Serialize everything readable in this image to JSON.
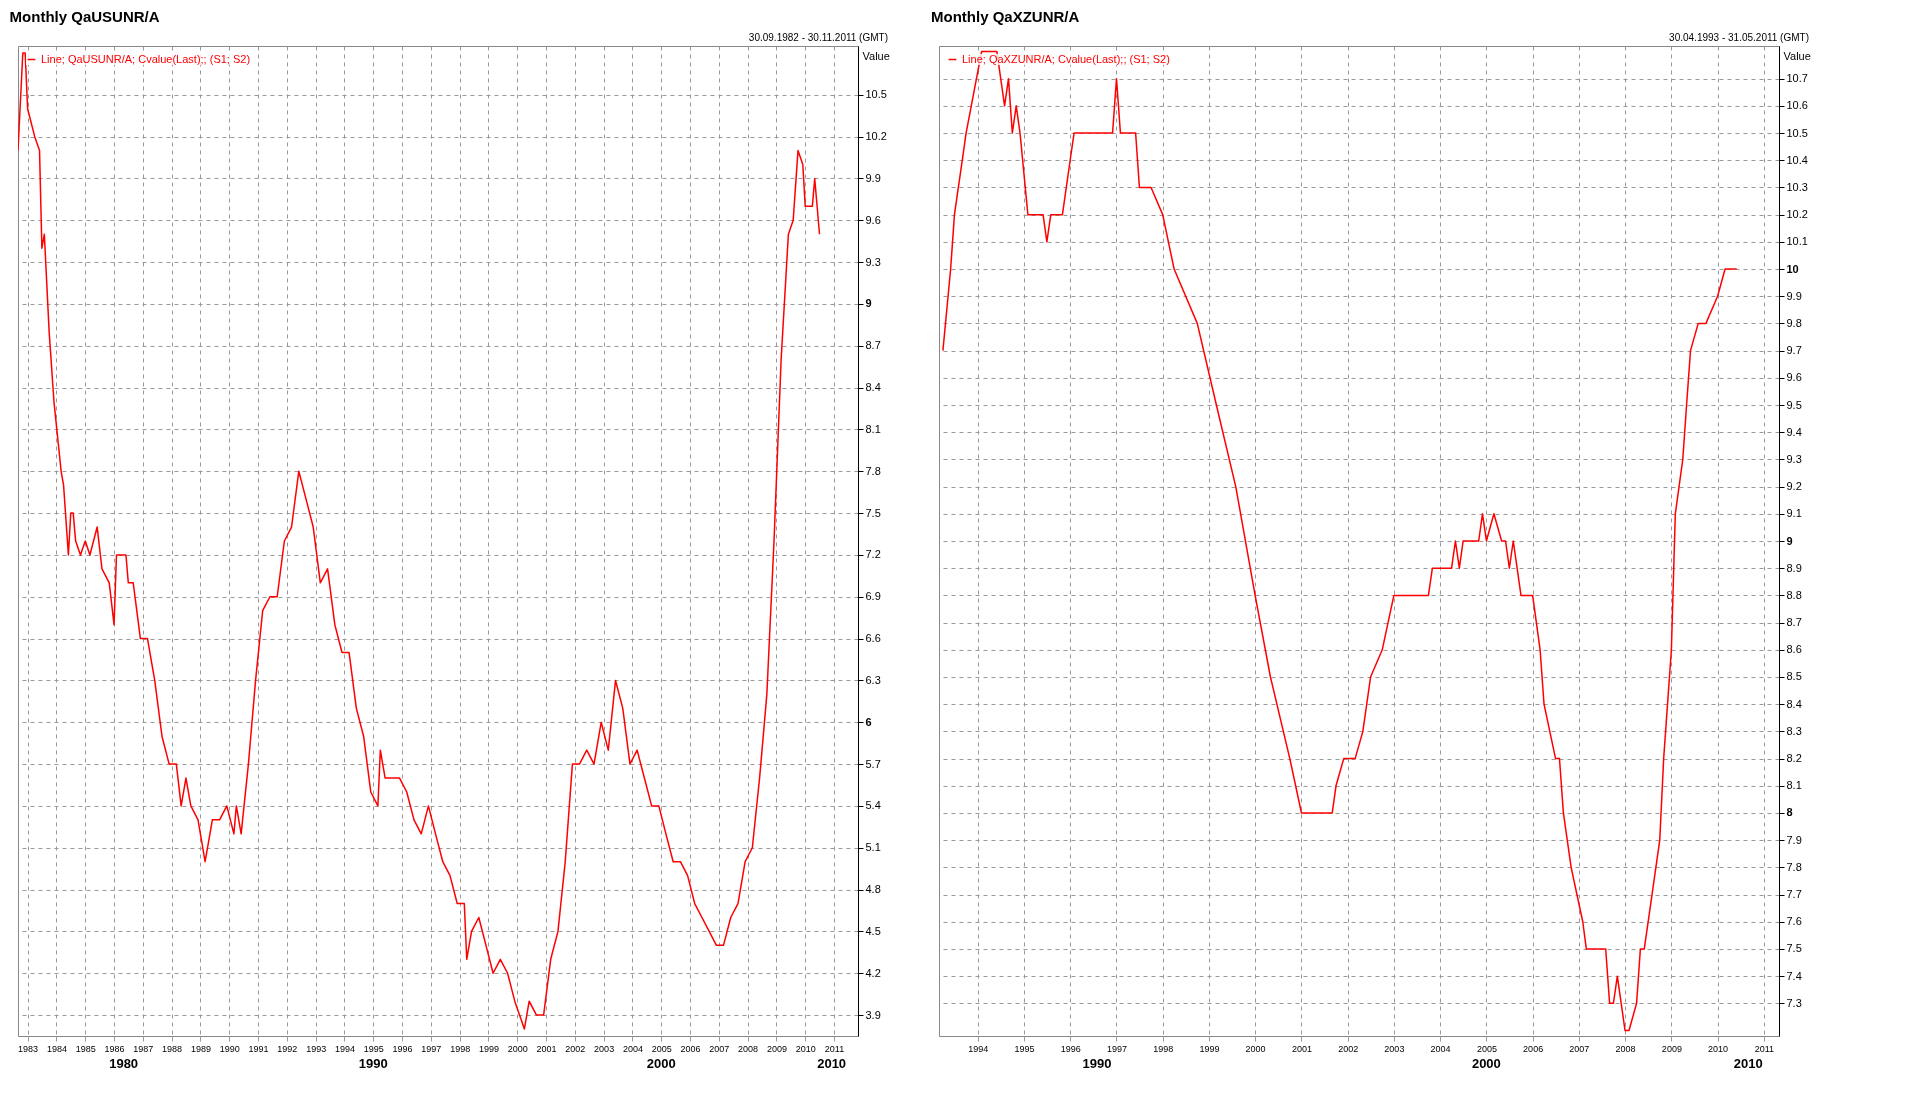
{
  "chart_data": [
    {
      "type": "line",
      "title": "Monthly QaUSUNR/A",
      "subtitle": "30.09.1982 - 30.11.2011 (GMT)",
      "ylabel": "Value",
      "legend": "top left",
      "grid": true,
      "marker": "none",
      "xlim": [
        "1982-09",
        "2011-11"
      ],
      "xticks": [
        "1983",
        "1984",
        "1985",
        "1986",
        "1987",
        "1988",
        "1989",
        "1990",
        "1991",
        "1992",
        "1993",
        "1994",
        "1995",
        "1996",
        "1997",
        "1998",
        "1999",
        "2000",
        "2001",
        "2002",
        "2003",
        "2004",
        "2005",
        "2006",
        "2007",
        "2008",
        "2009",
        "2010",
        "2011"
      ],
      "ylim": [
        3.75,
        10.85
      ],
      "yticks": [
        3.9,
        4.2,
        4.5,
        4.8,
        5.1,
        5.4,
        5.7,
        6,
        6.3,
        6.6,
        6.9,
        7.2,
        7.5,
        7.8,
        8.1,
        8.4,
        8.7,
        9,
        9.3,
        9.6,
        9.9,
        10.2,
        10.5
      ],
      "annotations": [
        "1980",
        "1990",
        "2000",
        "2010"
      ],
      "series": [
        {
          "name": "Line; QaUSUNR/A; Cvalue(Last);; (S1; S2)",
          "color": "#ff0000",
          "x": [
            "1982-09",
            "1982-11",
            "1982-12",
            "1983-01",
            "1983-04",
            "1983-06",
            "1983-07",
            "1983-08",
            "1983-10",
            "1983-12",
            "1984-03",
            "1984-04",
            "1984-06",
            "1984-07",
            "1984-08",
            "1984-09",
            "1984-11",
            "1985-01",
            "1985-03",
            "1985-06",
            "1985-08",
            "1985-11",
            "1986-01",
            "1986-02",
            "1986-06",
            "1986-07",
            "1986-09",
            "1986-12",
            "1987-03",
            "1987-06",
            "1987-09",
            "1987-12",
            "1988-03",
            "1988-05",
            "1988-07",
            "1988-09",
            "1988-12",
            "1989-03",
            "1989-06",
            "1989-09",
            "1989-12",
            "1990-03",
            "1990-04",
            "1990-06",
            "1990-09",
            "1990-12",
            "1991-03",
            "1991-06",
            "1991-09",
            "1991-12",
            "1992-03",
            "1992-06",
            "1992-09",
            "1992-12",
            "1993-03",
            "1993-06",
            "1993-09",
            "1993-12",
            "1994-03",
            "1994-06",
            "1994-09",
            "1994-12",
            "1995-03",
            "1995-04",
            "1995-06",
            "1995-09",
            "1995-12",
            "1996-03",
            "1996-06",
            "1996-09",
            "1996-12",
            "1997-03",
            "1997-06",
            "1997-09",
            "1997-12",
            "1998-03",
            "1998-04",
            "1998-06",
            "1998-09",
            "1998-12",
            "1999-03",
            "1999-06",
            "1999-09",
            "1999-12",
            "2000-04",
            "2000-06",
            "2000-09",
            "2000-12",
            "2001-03",
            "2001-06",
            "2001-09",
            "2001-12",
            "2002-03",
            "2002-06",
            "2002-09",
            "2002-12",
            "2003-03",
            "2003-06",
            "2003-09",
            "2003-12",
            "2004-03",
            "2004-06",
            "2004-09",
            "2004-12",
            "2005-03",
            "2005-06",
            "2005-09",
            "2005-12",
            "2006-03",
            "2006-06",
            "2006-09",
            "2006-12",
            "2007-03",
            "2007-06",
            "2007-09",
            "2007-12",
            "2008-03",
            "2008-06",
            "2008-09",
            "2008-12",
            "2009-03",
            "2009-06",
            "2009-08",
            "2009-10",
            "2009-12",
            "2010-01",
            "2010-04",
            "2010-05",
            "2010-07"
          ],
          "values": [
            10.1,
            10.8,
            10.8,
            10.4,
            10.2,
            10.1,
            9.4,
            9.5,
            8.8,
            8.3,
            7.8,
            7.7,
            7.2,
            7.5,
            7.5,
            7.3,
            7.2,
            7.3,
            7.2,
            7.4,
            7.1,
            7.0,
            6.7,
            7.2,
            7.2,
            7.0,
            7.0,
            6.6,
            6.6,
            6.3,
            5.9,
            5.7,
            5.7,
            5.4,
            5.6,
            5.4,
            5.3,
            5.0,
            5.3,
            5.3,
            5.4,
            5.2,
            5.4,
            5.2,
            5.7,
            6.3,
            6.8,
            6.9,
            6.9,
            7.3,
            7.4,
            7.8,
            7.6,
            7.4,
            7.0,
            7.1,
            6.7,
            6.5,
            6.5,
            6.1,
            5.9,
            5.5,
            5.4,
            5.8,
            5.6,
            5.6,
            5.6,
            5.5,
            5.3,
            5.2,
            5.4,
            5.2,
            5.0,
            4.9,
            4.7,
            4.7,
            4.3,
            4.5,
            4.6,
            4.4,
            4.2,
            4.3,
            4.2,
            4.0,
            3.8,
            4.0,
            3.9,
            3.9,
            4.3,
            4.5,
            5.0,
            5.7,
            5.7,
            5.8,
            5.7,
            6.0,
            5.8,
            6.3,
            6.1,
            5.7,
            5.8,
            5.6,
            5.4,
            5.4,
            5.2,
            5.0,
            5.0,
            4.9,
            4.7,
            4.6,
            4.5,
            4.4,
            4.4,
            4.6,
            4.7,
            5.0,
            5.1,
            5.6,
            6.2,
            7.3,
            8.6,
            9.5,
            9.6,
            10.1,
            10.0,
            9.7,
            9.7,
            9.9,
            9.5
          ]
        }
      ]
    },
    {
      "type": "line",
      "title": "Monthly QaXZUNR/A",
      "subtitle": "30.04.1993 - 31.05.2011 (GMT)",
      "ylabel": "Value",
      "legend": "top left",
      "grid": true,
      "marker": "none",
      "xlim": [
        "1993-03",
        "2011-05"
      ],
      "xticks": [
        "1994",
        "1995",
        "1996",
        "1997",
        "1998",
        "1999",
        "2000",
        "2001",
        "2002",
        "2003",
        "2004",
        "2005",
        "2006",
        "2007",
        "2008",
        "2009",
        "2010",
        "2011"
      ],
      "ylim": [
        7.18,
        10.82
      ],
      "yticks": [
        7.3,
        7.4,
        7.5,
        7.6,
        7.7,
        7.8,
        7.9,
        8,
        8.1,
        8.2,
        8.3,
        8.4,
        8.5,
        8.6,
        8.7,
        8.8,
        8.9,
        9,
        9.1,
        9.2,
        9.3,
        9.4,
        9.5,
        9.6,
        9.7,
        9.8,
        9.9,
        10,
        10.1,
        10.2,
        10.3,
        10.4,
        10.5,
        10.6,
        10.7
      ],
      "annotations": [
        "1990",
        "2000",
        "2010"
      ],
      "series": [
        {
          "name": "Line; QaXZUNR/A; Cvalue(Last);; (S1; S2)",
          "color": "#ff0000",
          "x": [
            "1993-04",
            "1993-06",
            "1993-07",
            "1993-09",
            "1993-10",
            "1994-02",
            "1994-06",
            "1994-08",
            "1994-09",
            "1994-10",
            "1994-11",
            "1994-12",
            "1995-02",
            "1995-06",
            "1995-07",
            "1995-08",
            "1995-11",
            "1996-01",
            "1996-02",
            "1996-12",
            "1997-01",
            "1997-02",
            "1997-06",
            "1997-07",
            "1997-10",
            "1998-01",
            "1998-04",
            "1998-10",
            "1999-03",
            "1999-08",
            "2000-01",
            "2000-05",
            "2000-10",
            "2001-01",
            "2001-09",
            "2001-10",
            "2001-12",
            "2002-03",
            "2002-05",
            "2002-07",
            "2002-10",
            "2003-01",
            "2003-10",
            "2003-11",
            "2004-04",
            "2004-05",
            "2004-06",
            "2004-07",
            "2004-11",
            "2004-12",
            "2005-01",
            "2005-03",
            "2005-05",
            "2005-06",
            "2005-07",
            "2005-08",
            "2005-10",
            "2006-01",
            "2006-03",
            "2006-04",
            "2006-07",
            "2006-08",
            "2006-09",
            "2006-11",
            "2007-02",
            "2007-03",
            "2007-08",
            "2007-09",
            "2007-10",
            "2007-11",
            "2008-01",
            "2008-02",
            "2008-04",
            "2008-05",
            "2008-06",
            "2008-08",
            "2008-10",
            "2008-11",
            "2009-01",
            "2009-02",
            "2009-04",
            "2009-05",
            "2009-06",
            "2009-08",
            "2009-10",
            "2010-01",
            "2010-03",
            "2010-06"
          ],
          "values": [
            9.7,
            10.0,
            10.2,
            10.4,
            10.5,
            10.8,
            10.8,
            10.6,
            10.7,
            10.5,
            10.6,
            10.5,
            10.2,
            10.2,
            10.1,
            10.2,
            10.2,
            10.4,
            10.5,
            10.5,
            10.7,
            10.5,
            10.5,
            10.3,
            10.3,
            10.2,
            10.0,
            9.8,
            9.5,
            9.2,
            8.8,
            8.5,
            8.2,
            8.0,
            8.0,
            8.1,
            8.2,
            8.2,
            8.3,
            8.5,
            8.6,
            8.8,
            8.8,
            8.9,
            8.9,
            9.0,
            8.9,
            9.0,
            9.0,
            9.1,
            9.0,
            9.1,
            9.0,
            9.0,
            8.9,
            9.0,
            8.8,
            8.8,
            8.6,
            8.4,
            8.2,
            8.2,
            8.0,
            7.8,
            7.6,
            7.5,
            7.5,
            7.3,
            7.3,
            7.4,
            7.2,
            7.2,
            7.3,
            7.5,
            7.5,
            7.7,
            7.9,
            8.2,
            8.6,
            9.1,
            9.3,
            9.5,
            9.7,
            9.8,
            9.8,
            9.9,
            10.0,
            10.0
          ]
        }
      ]
    }
  ]
}
